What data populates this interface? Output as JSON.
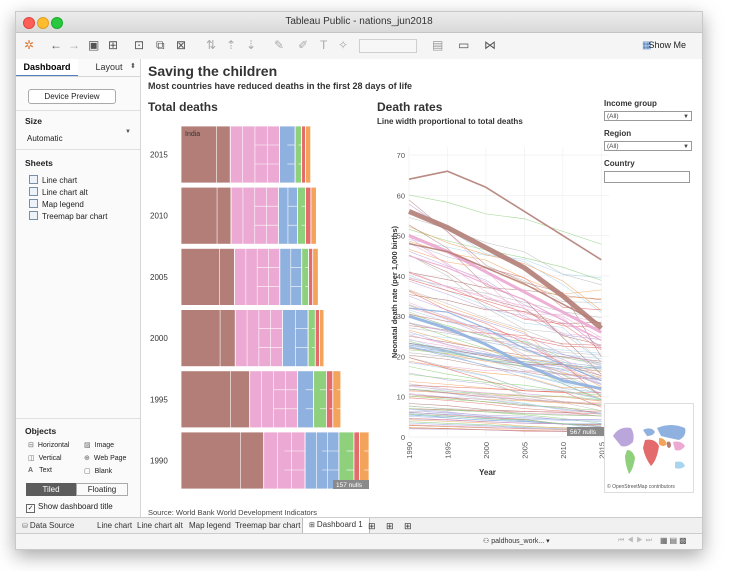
{
  "window": {
    "title": "Tableau Public - nations_jun2018"
  },
  "toolbar": {
    "show_me": "Show Me"
  },
  "left_panel": {
    "tabs": [
      "Dashboard",
      "Layout"
    ],
    "device_preview": "Device Preview",
    "size_label": "Size",
    "size_value": "Automatic",
    "sheets_label": "Sheets",
    "sheets": [
      "Line chart",
      "Line chart alt",
      "Map legend",
      "Treemap bar chart"
    ],
    "objects_label": "Objects",
    "objects": [
      "Horizontal",
      "Image",
      "Vertical",
      "Web Page",
      "Text",
      "Blank"
    ],
    "tiled": "Tiled",
    "floating": "Floating",
    "show_title": "Show dashboard title"
  },
  "dashboard": {
    "title": "Saving the children",
    "subtitle": "Most countries have reduced deaths in the first 28 days of life",
    "source": "Source: World Bank World Development Indicators"
  },
  "filters": {
    "income_label": "Income group",
    "income_value": "(All)",
    "region_label": "Region",
    "region_value": "(All)",
    "country_label": "Country",
    "map_credit": "© OpenStreetMap contributors"
  },
  "sheet_tabs": [
    "Data Source",
    "Line chart",
    "Line chart alt",
    "Map legend",
    "Treemap bar chart",
    "Dashboard 1"
  ],
  "user": "paldhous_work...",
  "colors": {
    "brown": "#b37e77",
    "pink": "#eba9d3",
    "blue": "#8fb1df",
    "green": "#8ed07c",
    "red": "#e36b6b",
    "orange": "#f3a35a",
    "grey": "#bdbdbd",
    "purple": "#bba6dc",
    "lightblue": "#a9d4f0"
  },
  "chart_data": [
    {
      "type": "treemap",
      "title": "Total deaths",
      "categories": [
        "2015",
        "2010",
        "2005",
        "2000",
        "1995",
        "1990"
      ],
      "labels": [
        "India"
      ],
      "series": [
        {
          "name": "brown",
          "values": [
            0.38,
            0.37,
            0.39,
            0.38,
            0.43,
            0.44
          ]
        },
        {
          "name": "pink",
          "values": [
            0.38,
            0.35,
            0.33,
            0.33,
            0.3,
            0.22
          ]
        },
        {
          "name": "blue",
          "values": [
            0.12,
            0.14,
            0.16,
            0.18,
            0.1,
            0.18
          ]
        },
        {
          "name": "green",
          "values": [
            0.05,
            0.06,
            0.05,
            0.05,
            0.08,
            0.08
          ]
        },
        {
          "name": "red",
          "values": [
            0.03,
            0.04,
            0.03,
            0.03,
            0.04,
            0.03
          ]
        },
        {
          "name": "orange",
          "values": [
            0.04,
            0.04,
            0.04,
            0.03,
            0.05,
            0.05
          ]
        }
      ],
      "totals": [
        0.69,
        0.72,
        0.73,
        0.76,
        0.85,
        1.0
      ],
      "nulls_label": "157 nulls"
    },
    {
      "type": "line",
      "title": "Death rates",
      "subtitle": "Line width proportional to total deaths",
      "xlabel": "Year",
      "ylabel": "Neonatal death rate (per 1,000 births)",
      "x": [
        1990,
        1995,
        2000,
        2005,
        2010,
        2015
      ],
      "xticks": [
        "1990",
        "1995",
        "2000",
        "2005",
        "2010",
        "2015"
      ],
      "yticks": [
        "0",
        "10",
        "20",
        "30",
        "40",
        "50",
        "60",
        "70"
      ],
      "xlim": [
        1990,
        2016
      ],
      "ylim": [
        0,
        72
      ],
      "grid": true,
      "nulls_label": "567 nulls",
      "highlight_series": [
        {
          "color": "#b37e77",
          "width": 5,
          "values": [
            56,
            52,
            47,
            42,
            35,
            27
          ]
        },
        {
          "color": "#eba9d3",
          "width": 3,
          "values": [
            50,
            46,
            41,
            36,
            31,
            26
          ]
        },
        {
          "color": "#8fb1df",
          "width": 3,
          "values": [
            30,
            27,
            23,
            18,
            14,
            12
          ]
        },
        {
          "color": "#b37e77",
          "width": 1.6,
          "values": [
            64,
            66,
            62,
            56,
            50,
            44
          ]
        },
        {
          "color": "#b37e77",
          "width": 1.4,
          "values": [
            48,
            46,
            42,
            38,
            33,
            28
          ]
        },
        {
          "color": "#eba9d3",
          "width": 1.2,
          "values": [
            45,
            42,
            38,
            34,
            29,
            24
          ]
        },
        {
          "color": "#8fb1df",
          "width": 1.2,
          "values": [
            32,
            31,
            27,
            22,
            18,
            14
          ]
        }
      ]
    }
  ]
}
